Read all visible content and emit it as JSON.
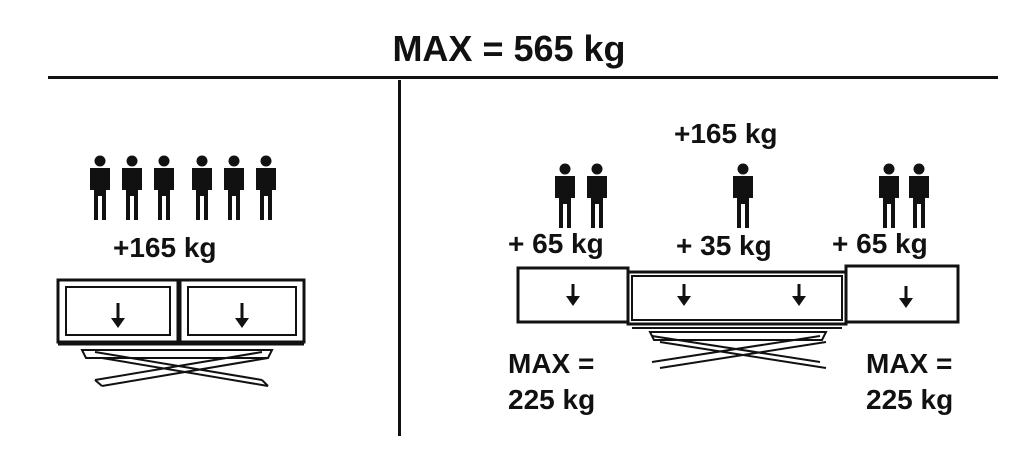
{
  "title": "MAX = 565 kg",
  "left": {
    "load_label": "+165 kg",
    "people_icon": "person-icon"
  },
  "right": {
    "top_label": "+165 kg",
    "left_label": "+ 65 kg",
    "center_label": "+ 35 kg",
    "right_label": "+ 65 kg",
    "left_max_line1": "MAX =",
    "left_max_line2": "225 kg",
    "right_max_line1": "MAX =",
    "right_max_line2": "225 kg"
  }
}
